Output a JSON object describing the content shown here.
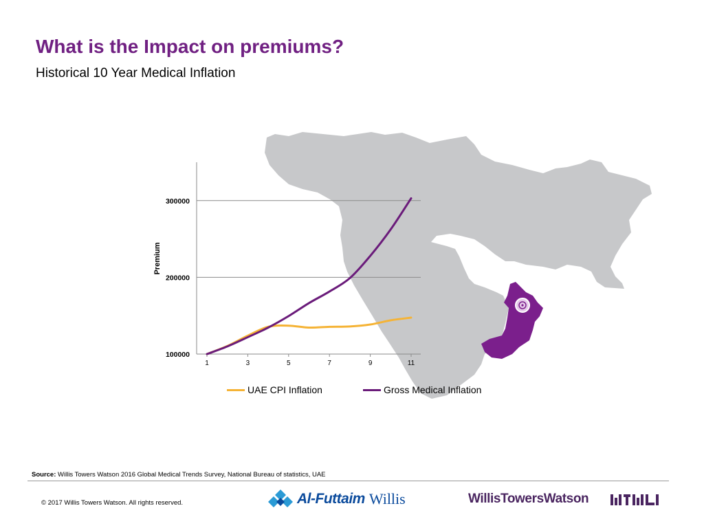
{
  "title": "What is the Impact on premiums?",
  "subtitle": "Historical 10 Year Medical Inflation",
  "colors": {
    "brand_purple": "#702082",
    "cpi_line": "#F5B335",
    "medical_line": "#6A1B7A",
    "map_grey": "#C7C8CA",
    "highlight_region": "#7B1F8C"
  },
  "chart_data": {
    "type": "line",
    "title": "",
    "xlabel": "",
    "ylabel": "Premium",
    "x": [
      1,
      2,
      3,
      4,
      5,
      6,
      7,
      8,
      9,
      10,
      11
    ],
    "xticks": [
      "1",
      "3",
      "5",
      "7",
      "9",
      "11"
    ],
    "ytick_labels": [
      "100000",
      "200000",
      "300000"
    ],
    "ylim": [
      100000,
      350000
    ],
    "grid": "horizontal",
    "legend_position": "bottom",
    "series": [
      {
        "name": "UAE CPI Inflation",
        "color": "#F5B335",
        "values": [
          100000,
          110500,
          124000,
          135500,
          137000,
          134500,
          135500,
          136000,
          138500,
          144000,
          147500
        ]
      },
      {
        "name": "Gross Medical Inflation",
        "color": "#6A1B7A",
        "values": [
          100000,
          110000,
          122000,
          134500,
          149500,
          166500,
          181500,
          199000,
          228000,
          262500,
          303000
        ]
      }
    ]
  },
  "legend": [
    {
      "label": "UAE CPI Inflation",
      "color": "#F5B335"
    },
    {
      "label": "Gross Medical Inflation",
      "color": "#6A1B7A"
    }
  ],
  "source": {
    "label": "Source:",
    "text": "Willis Towers Watson 2016 Global Medical Trends Survey, National Bureau of statistics, UAE"
  },
  "copyright": "© 2017 Willis Towers Watson. All rights reserved.",
  "logos": {
    "partner_name": "Al-Futtaim",
    "partner_suffix": "Willis",
    "company_name": "WillisTowersWatson"
  }
}
